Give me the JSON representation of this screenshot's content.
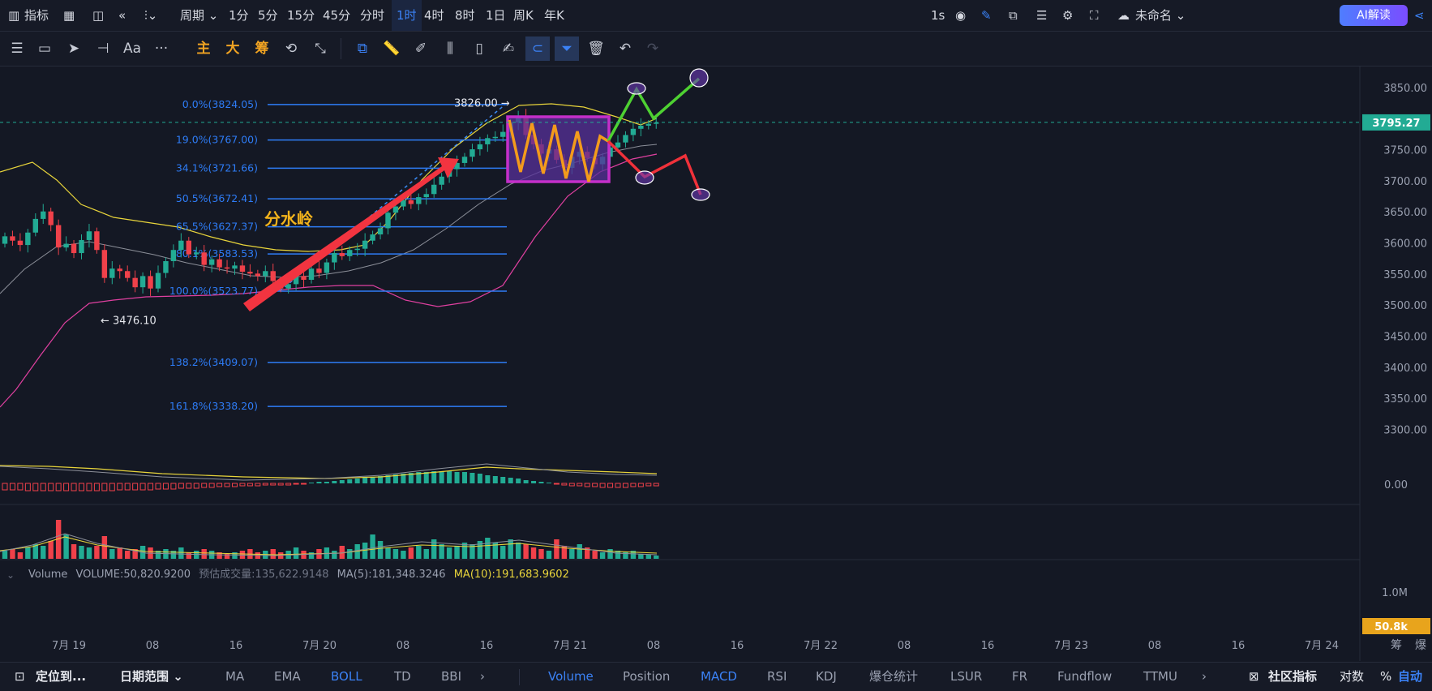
{
  "topbar": {
    "indicator_label": "指标",
    "period_label": "周期",
    "intervals": [
      "1分",
      "5分",
      "15分",
      "45分",
      "分时",
      "1时",
      "4时",
      "8时",
      "1日",
      "周K",
      "年K"
    ],
    "active_interval": "1时",
    "refresh": "1s",
    "layout_name": "未命名",
    "ai_button": "AI解读"
  },
  "toolbar": {
    "text_tool": "Aa",
    "main_label": "主",
    "large_label": "大",
    "chips_label": "筹"
  },
  "chart_data": {
    "type": "candlestick",
    "price_axis_ticks": [
      "3850.00",
      "3800.00",
      "3750.00",
      "3700.00",
      "3650.00",
      "3600.00",
      "3550.00",
      "3500.00",
      "3450.00",
      "3400.00",
      "3350.00",
      "3300.00"
    ],
    "current_price": "3795.27",
    "low_marker": "3476.10",
    "high_marker": "3826.00",
    "fib_levels": [
      {
        "label": "0.0%(3824.05)",
        "value": 3824.05
      },
      {
        "label": "19.0%(3767.00)",
        "value": 3767.0
      },
      {
        "label": "34.1%(3721.66)",
        "value": 3721.66
      },
      {
        "label": "50.5%(3672.41)",
        "value": 3672.41
      },
      {
        "label": "65.5%(3627.37)",
        "value": 3627.37
      },
      {
        "label": "80.1%(3583.53)",
        "value": 3583.53
      },
      {
        "label": "100.0%(3523.77)",
        "value": 3523.77
      },
      {
        "label": "138.2%(3409.07)",
        "value": 3409.07
      },
      {
        "label": "161.8%(3338.20)",
        "value": 3338.2
      }
    ],
    "annotation": "分水岭",
    "time_axis_ticks": [
      "7月 19",
      "08",
      "16",
      "7月 20",
      "08",
      "16",
      "7月 21",
      "08",
      "16",
      "7月 22",
      "08",
      "16",
      "7月 23",
      "08",
      "16",
      "7月 24"
    ],
    "macd_zero": "0.00",
    "volume_ticks": [
      "1.0M",
      "50.8k"
    ],
    "volume_legend": {
      "name": "Volume",
      "volume": "VOLUME:50,820.9200",
      "est": "预估成交量:135,622.9148",
      "ma5": "MA(5):181,348.3246",
      "ma10": "MA(10):191,683.9602"
    },
    "colors": {
      "up": "#22ab94",
      "down": "#f0414a",
      "fib": "#2e7cf6",
      "boll_upper": "#e8d43b",
      "boll_mid": "#8c8f99",
      "boll_lower": "#e040a0",
      "box": "#c42fc9",
      "zigzag": "#f39b1c",
      "bull_path": "#4ed132",
      "bear_path": "#f0313a"
    }
  },
  "bottombar": {
    "locate": "定位到...",
    "date_range": "日期范围",
    "indicators": [
      "MA",
      "EMA",
      "BOLL",
      "TD",
      "BBI"
    ],
    "active_main": "BOLL",
    "sub_indicators": [
      "Volume",
      "Position",
      "MACD",
      "RSI",
      "KDJ",
      "爆仓统计",
      "LSUR",
      "FR",
      "Fundflow",
      "TTMU"
    ],
    "active_sub": [
      "Volume",
      "MACD"
    ],
    "community": "社区指标",
    "log": "对数",
    "percent": "%",
    "auto": "自动",
    "corner_chips": "筹",
    "corner_burst": "爆"
  }
}
